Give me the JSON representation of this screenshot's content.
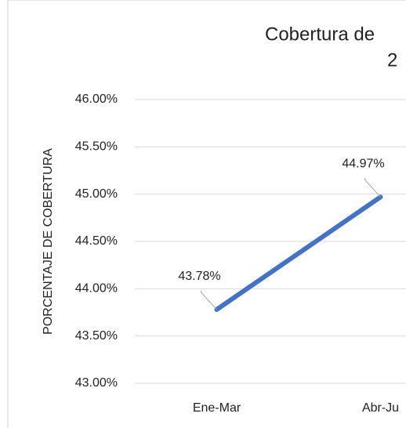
{
  "chart_data": {
    "type": "line",
    "title": [
      "Cobertura de",
      "2"
    ],
    "y_label": "PORCENTAJE DE COBERTURA",
    "categories": [
      "Ene-Mar",
      "Abr-Ju"
    ],
    "series": [
      {
        "color": "#4472c4",
        "values": [
          43.78,
          44.97
        ],
        "value_labels": [
          "43.78%",
          "44.97%"
        ]
      }
    ],
    "ylim": [
      43,
      46
    ],
    "yticks": [
      {
        "value": 43,
        "label": "43.00%"
      },
      {
        "value": 43.5,
        "label": "43.50%"
      },
      {
        "value": 44,
        "label": "44.00%"
      },
      {
        "value": 44.5,
        "label": "44.50%"
      },
      {
        "value": 45,
        "label": "45.00%"
      },
      {
        "value": 45.5,
        "label": "45.50%"
      },
      {
        "value": 46,
        "label": "46.00%"
      }
    ],
    "grid": true
  }
}
